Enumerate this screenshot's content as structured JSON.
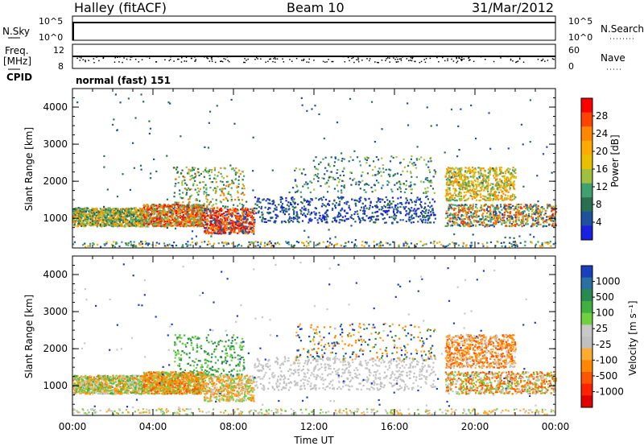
{
  "header": {
    "station": "Halley (fitACF)",
    "beam": "Beam 10",
    "date": "31/Mar/2012"
  },
  "nsky_panel": {
    "left_label": "N.Sky",
    "left_ticks": [
      "10^5",
      "10^0"
    ],
    "right_label": "N.Search",
    "right_ticks": [
      "10^5",
      "10^0"
    ]
  },
  "freq_panel": {
    "label_line1": "Freq.",
    "label_line2": "[MHz]",
    "left_ticks": [
      "12",
      "8"
    ],
    "right_label": "Nave",
    "right_ticks": [
      "60",
      "0"
    ]
  },
  "cpid": {
    "label": "CPID",
    "text": "normal (fast) 151"
  },
  "chart_data": [
    {
      "type": "heatmap",
      "name": "power-panel",
      "ylabel": "Slant Range [km]",
      "y_ticks": [
        1000,
        2000,
        3000,
        4000
      ],
      "ylim": [
        200,
        4500
      ],
      "xlim": [
        0,
        24
      ],
      "colorbar_label": "Power [dB]",
      "colorbar_ticks": [
        "28",
        "24",
        "20",
        "16",
        "12",
        "8",
        "4"
      ],
      "colorbar_colors": [
        "#ff0000",
        "#ff4400",
        "#ff8800",
        "#ffaa00",
        "#e8c000",
        "#a0c040",
        "#40a070",
        "#2a7050",
        "#2050a0",
        "#1a20e0"
      ]
    },
    {
      "type": "heatmap",
      "name": "velocity-panel",
      "ylabel": "Slant Range [km]",
      "y_ticks": [
        1000,
        2000,
        3000,
        4000
      ],
      "ylim": [
        200,
        4500
      ],
      "xlim": [
        0,
        24
      ],
      "colorbar_label": "Velocity [m s⁻¹]",
      "colorbar_ticks": [
        "1000",
        "500",
        "100",
        "25",
        "-25",
        "-100",
        "-500",
        "-1000"
      ],
      "colorbar_colors": [
        "#1a40c0",
        "#2a70a0",
        "#2a8a50",
        "#40b040",
        "#70d040",
        "#c8c8c8",
        "#c0c0c0",
        "#ffaa30",
        "#ff8800",
        "#ff5500",
        "#ff2200",
        "#e00000"
      ]
    }
  ],
  "time_axis": {
    "label": "Time UT",
    "ticks": [
      "00:00",
      "04:00",
      "08:00",
      "12:00",
      "16:00",
      "20:00",
      "00:00"
    ]
  }
}
